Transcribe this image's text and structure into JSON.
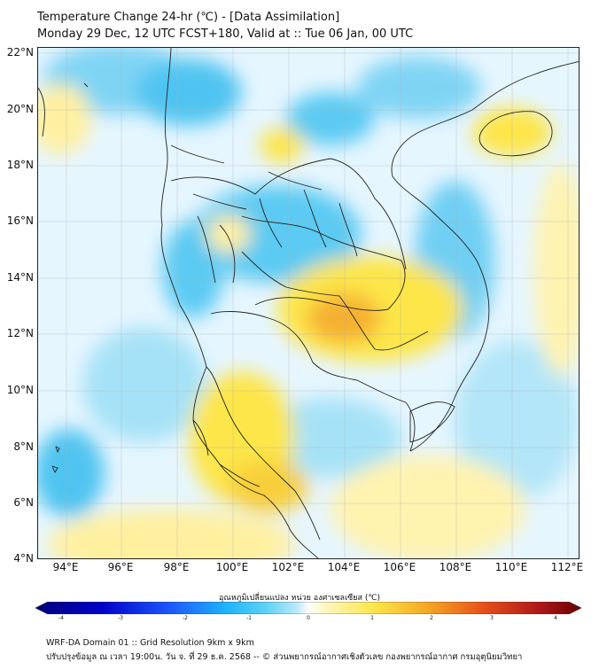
{
  "header": {
    "title_line1": "Temperature Change 24-hr (℃) - [Data Assimilation]",
    "title_line2": "Monday 29 Dec, 12 UTC FCST+180, Valid at :: Tue 06 Jan, 00 UTC"
  },
  "map": {
    "lat_labels": [
      "22°N",
      "20°N",
      "18°N",
      "16°N",
      "14°N",
      "12°N",
      "10°N",
      "8°N",
      "6°N",
      "4°N"
    ],
    "lon_labels": [
      "94°E",
      "96°E",
      "98°E",
      "100°E",
      "102°E",
      "104°E",
      "106°E",
      "108°E",
      "110°E",
      "112°E"
    ],
    "background_color": "#e6f6ff",
    "warm_color": "#fde64a",
    "warm_strong_color": "#f5a623",
    "cool_color": "#3fc0ee",
    "cool_light_color": "#a6e2f7"
  },
  "colorbar": {
    "title": "อุณหภูมิเปลี่ยนแปลง หน่วย องศาเซลเซียส (℃)",
    "ticks": [
      "-4",
      "-3",
      "-2",
      "-1",
      "0",
      "1",
      "2",
      "3",
      "4"
    ],
    "min": -4,
    "max": 4,
    "colors": [
      "#00007a",
      "#0000c8",
      "#1e5aff",
      "#1eb4ff",
      "#5ad2f5",
      "#bde9fa",
      "#ffffff",
      "#fff8c0",
      "#fde64a",
      "#f5a623",
      "#e8501a",
      "#b01818",
      "#6b0000"
    ]
  },
  "footer": {
    "line1": "WRF-DA Domain 01 :: Grid Resolution 9km x 9km",
    "line2": "ปรับปรุงข้อมูล ณ เวลา 19:00น. วัน จ. ที่ 29 ธ.ค. 2568 -- © ส่วนพยากรณ์อากาศเชิงตัวเลข กองพยากรณ์อากาศ กรมอุตุนิยมวิทยา"
  }
}
